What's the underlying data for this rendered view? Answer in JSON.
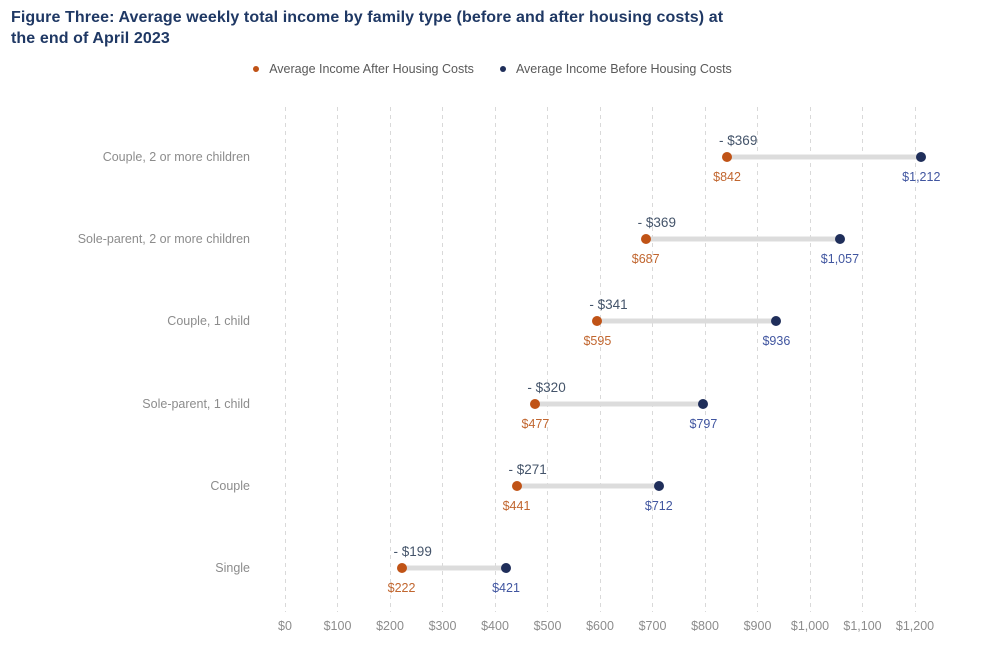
{
  "header": {
    "title_lines": [
      "Figure Three: Average weekly total income by family type (before and after housing costs) at",
      "the end of April 2023"
    ]
  },
  "legend": [
    {
      "label": "Average Income After Housing Costs"
    },
    {
      "label": "Average Income Before Housing Costs"
    }
  ],
  "colors": {
    "title": "#1F3864",
    "legend_text": "#595959",
    "axis_text": "#8C8C8C",
    "gridline": "#D9D9D9",
    "connector": "#DCDCDC",
    "after_dot": "#C05316",
    "before_dot": "#1F2E5A",
    "after_value_text": "#C1662F",
    "before_value_text": "#4156A0",
    "difference_text": "#44546A"
  },
  "chart_data": {
    "type": "dumbbell",
    "title": "Figure Three: Average weekly total income by family type (before and after housing costs) at the end of April 2023",
    "categories": [
      "Couple, 2 or more children",
      "Sole-parent, 2 or more children",
      "Couple, 1 child",
      "Sole-parent, 1 child",
      "Couple",
      "Single"
    ],
    "series": [
      {
        "name": "Average Income After Housing Costs",
        "color": "#C05316",
        "label_color": "#C1662F",
        "values": [
          842,
          687,
          595,
          477,
          441,
          222
        ],
        "value_labels": [
          "$842",
          "$687",
          "$595",
          "$477",
          "$441",
          "$222"
        ]
      },
      {
        "name": "Average Income Before Housing Costs",
        "color": "#1F2E5A",
        "label_color": "#4156A0",
        "values": [
          1212,
          1057,
          936,
          797,
          712,
          421
        ],
        "value_labels": [
          "$1,212",
          "$1,057",
          "$936",
          "$797",
          "$712",
          "$421"
        ]
      }
    ],
    "difference_labels": [
      "- $369",
      "- $369",
      "- $341",
      "- $320",
      "- $271",
      "- $199"
    ],
    "xlabel": "",
    "ylabel": "",
    "xlim": [
      0,
      1200
    ],
    "x_ticks": [
      0,
      100,
      200,
      300,
      400,
      500,
      600,
      700,
      800,
      900,
      1000,
      1100,
      1200
    ],
    "x_tick_labels": [
      "$0",
      "$100",
      "$200",
      "$300",
      "$400",
      "$500",
      "$600",
      "$700",
      "$800",
      "$900",
      "$1,000",
      "$1,100",
      "$1,200"
    ],
    "grid": "vertical-dashed",
    "legend_position": "top"
  }
}
